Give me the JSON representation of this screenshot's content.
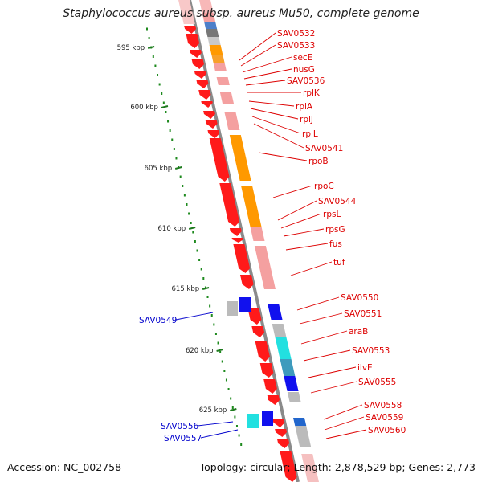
{
  "title": "Staphylococcus aureus subsp. aureus Mu50, complete genome",
  "footer": {
    "accession": "Accession: NC_002758",
    "topology": "Topology: circular; Length: 2,878,529 bp; Genes: 2,773"
  },
  "colors": {
    "forward_label": "#dd0000",
    "reverse_label": "#0000cc",
    "backbone": "#8a8a8a",
    "gc_dots": "#1e8a1e",
    "red": "#ff1a1a",
    "pink": "#f4a0a0",
    "orange": "#ff9900",
    "blue": "#1111ee",
    "cyan": "#22e0e0",
    "gray": "#bbbbbb"
  },
  "ruler": [
    {
      "label": "595 kbp"
    },
    {
      "label": "600 kbp"
    },
    {
      "label": "605 kbp"
    },
    {
      "label": "610 kbp"
    },
    {
      "label": "615 kbp"
    },
    {
      "label": "620 kbp"
    },
    {
      "label": "625 kbp"
    }
  ],
  "forward_genes": [
    {
      "name": "SAV0532"
    },
    {
      "name": "SAV0533"
    },
    {
      "name": "secE"
    },
    {
      "name": "nusG"
    },
    {
      "name": "SAV0536"
    },
    {
      "name": "rplK"
    },
    {
      "name": "rplA"
    },
    {
      "name": "rplJ"
    },
    {
      "name": "rplL"
    },
    {
      "name": "SAV0541"
    },
    {
      "name": "rpoB"
    },
    {
      "name": "rpoC"
    },
    {
      "name": "SAV0544"
    },
    {
      "name": "rpsL"
    },
    {
      "name": "rpsG"
    },
    {
      "name": "fus"
    },
    {
      "name": "tuf"
    },
    {
      "name": "SAV0550"
    },
    {
      "name": "SAV0551"
    },
    {
      "name": "araB"
    },
    {
      "name": "SAV0553"
    },
    {
      "name": "ilvE"
    },
    {
      "name": "SAV0555"
    },
    {
      "name": "SAV0558"
    },
    {
      "name": "SAV0559"
    },
    {
      "name": "SAV0560"
    }
  ],
  "reverse_genes": [
    {
      "name": "SAV0549"
    },
    {
      "name": "SAV0556"
    },
    {
      "name": "SAV0557"
    }
  ]
}
